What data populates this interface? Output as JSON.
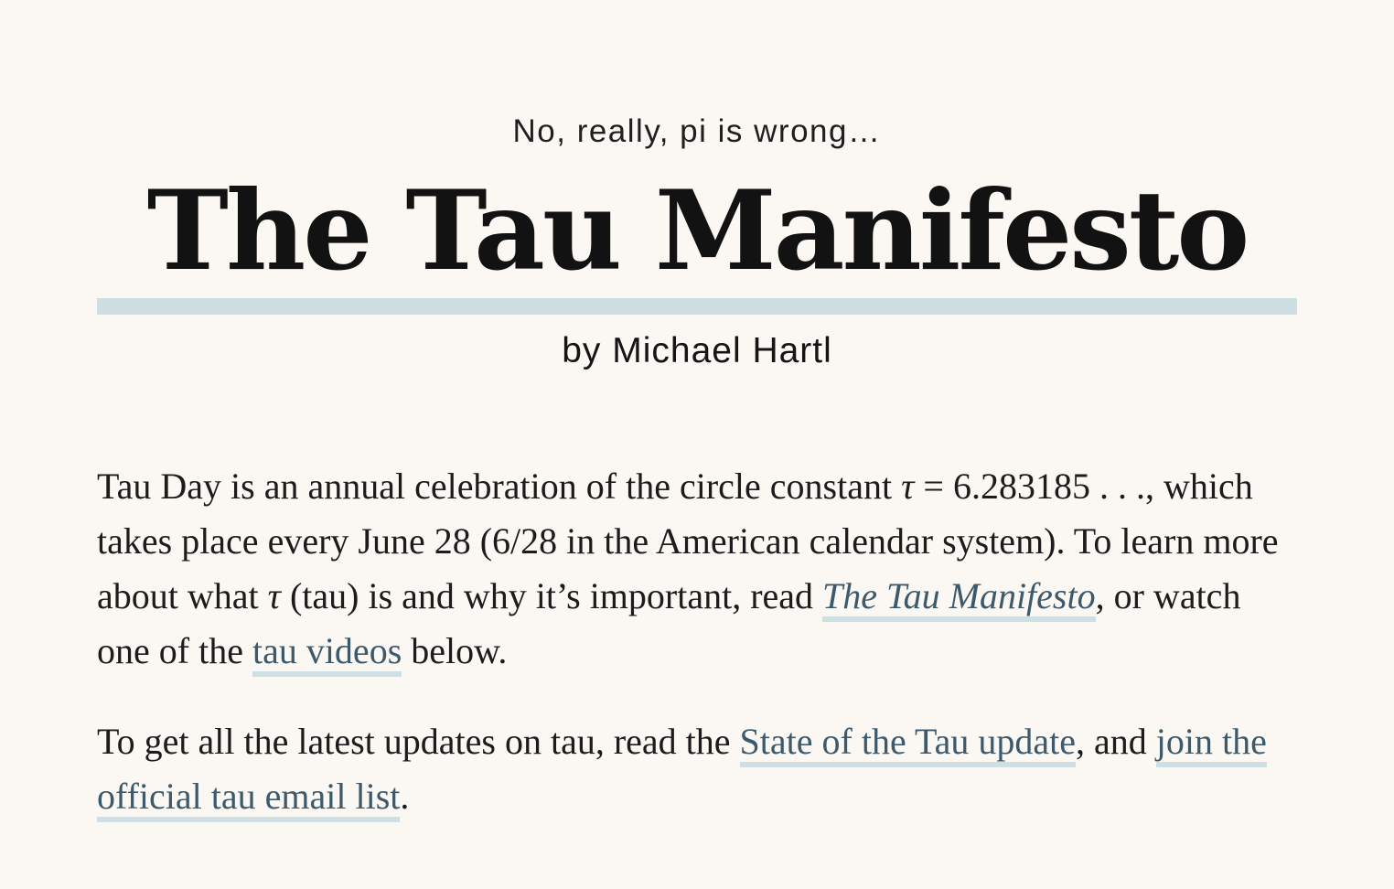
{
  "header": {
    "tagline": "No, really, pi is wrong…",
    "title": "The Tau Manifesto",
    "byline": "by Michael Hartl"
  },
  "intro": {
    "p1_seg1": "Tau Day is an annual celebration of the circle constant ",
    "tau_symbol": "τ",
    "p1_seg2": " = 6.283185 . . ., which takes place every June 28 (6/28 in the American calendar system). To learn more about what ",
    "p1_seg3": " (tau) is and why it’s important, read ",
    "link_manifesto": "The Tau Manifesto",
    "p1_seg4": ", or watch one of the ",
    "link_videos": "tau videos",
    "p1_seg5": " below.",
    "p2_seg1": "To get all the latest updates on tau, read the ",
    "link_update": "State of the Tau update",
    "p2_seg2": ", and ",
    "link_email": "join the official tau email list",
    "p2_seg3": "."
  },
  "colors": {
    "background": "#fbf8f3",
    "link": "#3c5a6c",
    "link_underline": "#cfe0e4",
    "title_rule": "#cddfe3"
  }
}
